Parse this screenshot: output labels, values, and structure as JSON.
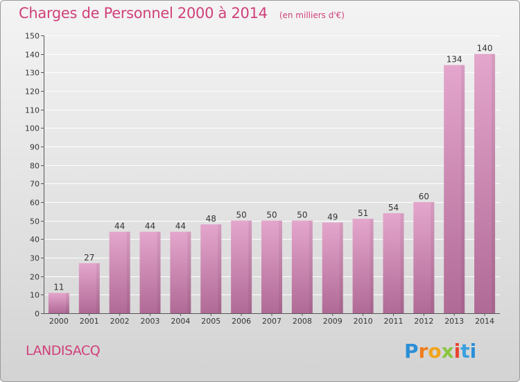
{
  "header": {
    "title": "Charges de Personnel 2000 à 2014",
    "subtitle": "(en milliers d'€)"
  },
  "footer": {
    "commune": "LANDISACQ",
    "brand_letters": [
      "P",
      "r",
      "o",
      "x",
      "i",
      "t",
      "i"
    ]
  },
  "colors": {
    "accent": "#d0407a",
    "bar_top": "#e4a6cc",
    "bar_bottom": "#b06a96"
  },
  "chart_data": {
    "type": "bar",
    "title": "Charges de Personnel 2000 à 2014",
    "subtitle": "(en milliers d'€)",
    "categories": [
      "2000",
      "2001",
      "2002",
      "2003",
      "2004",
      "2005",
      "2006",
      "2007",
      "2008",
      "2009",
      "2010",
      "2011",
      "2012",
      "2013",
      "2014"
    ],
    "values": [
      11,
      27,
      44,
      44,
      44,
      48,
      50,
      50,
      50,
      49,
      51,
      54,
      60,
      134,
      140
    ],
    "data_labels": [
      "11",
      "27",
      "44",
      "44",
      "44",
      "48",
      "50",
      "50",
      "50",
      "49",
      "51",
      "54",
      "60",
      "134",
      "140"
    ],
    "ylim": [
      0,
      150
    ],
    "yticks": [
      0,
      10,
      20,
      30,
      40,
      50,
      60,
      70,
      80,
      90,
      100,
      110,
      120,
      130,
      140,
      150
    ],
    "ytick_labels": [
      "0",
      "10",
      "20",
      "30",
      "40",
      "50",
      "60",
      "70",
      "80",
      "90",
      "100",
      "110",
      "120",
      "130",
      "140",
      "150"
    ],
    "grid": true,
    "xlabel": "",
    "ylabel": ""
  }
}
